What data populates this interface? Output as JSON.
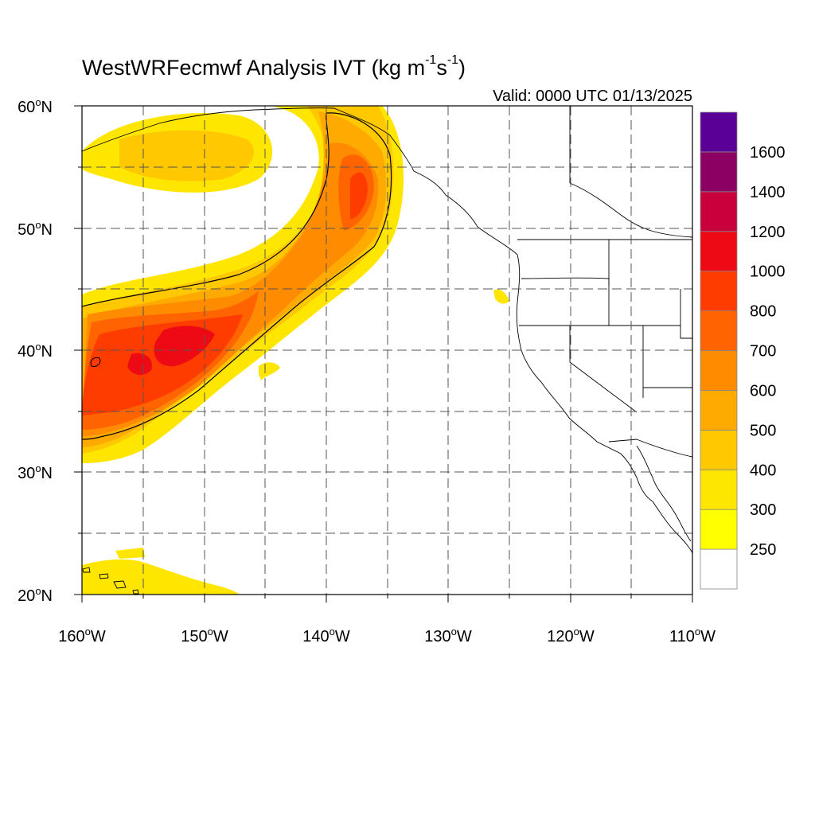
{
  "header": {
    "title_main": "WestWRFecmwf Analysis IVT (kg m",
    "title_exp1": "-1",
    "title_mid": "s",
    "title_exp2": "-1",
    "title_end": ")",
    "valid": "Valid: 0000 UTC 01/13/2025"
  },
  "map": {
    "lat_labels": [
      "60",
      "50",
      "40",
      "30",
      "20"
    ],
    "lat_suffix": "N",
    "lon_labels": [
      "160",
      "150",
      "140",
      "130",
      "120",
      "110"
    ],
    "lon_suffix": "W",
    "lat_range": [
      20,
      60
    ],
    "lon_range": [
      -160,
      -110
    ],
    "grid_spacing_deg": 5,
    "projection": "cylindrical equidistant"
  },
  "colorbar": {
    "tick_labels": [
      "250",
      "300",
      "400",
      "500",
      "600",
      "700",
      "800",
      "1000",
      "1200",
      "1400",
      "1600"
    ],
    "colors": [
      "#ffffff",
      "#ffff00",
      "#ffe600",
      "#ffc800",
      "#ffaa00",
      "#ff8c00",
      "#ff6400",
      "#ff3c00",
      "#ee0a14",
      "#c8003c",
      "#8c0064",
      "#5a0096"
    ]
  }
}
